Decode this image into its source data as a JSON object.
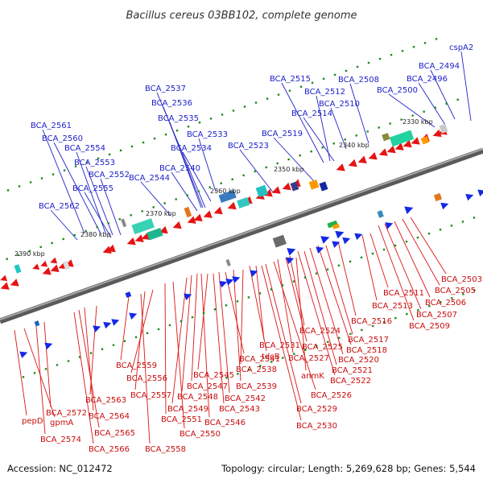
{
  "title": "Bacillus cereus 03BB102, complete genome",
  "footer": {
    "accession": "Accession: NC_012472",
    "topology": "Topology: circular; Length: 5,269,628 bp; Genes: 5,544"
  },
  "scale_labels": [
    "2330 kbp",
    "2340 kbp",
    "2350 kbp",
    "2360 kbp",
    "2370 kbp",
    "2380 kbp",
    "2390 kbp"
  ],
  "forward_genes": [
    "cspA2",
    "BCA_2494",
    "BCA_2496",
    "BCA_2500",
    "BCA_2508",
    "BCA_2515",
    "BCA_2512",
    "BCA_2510",
    "BCA_2514",
    "BCA_2519",
    "BCA_2523",
    "BCA_2533",
    "BCA_2534",
    "BCA_2537",
    "BCA_2536",
    "BCA_2535",
    "BCA_2540",
    "BCA_2544",
    "BCA_2561",
    "BCA_2560",
    "BCA_2554",
    "BCA_2553",
    "BCA_2552",
    "BCA_2555",
    "BCA_2562"
  ],
  "reverse_genes": [
    "BCA_2503",
    "BCA_2505",
    "BCA_2506",
    "BCA_2507",
    "BCA_2509",
    "BCA_2511",
    "BCA_2513",
    "BCA_2516",
    "BCA_2517",
    "BCA_2518",
    "BCA_2520",
    "BCA_2521",
    "BCA_2522",
    "BCA_2524",
    "BCA_2525",
    "BCA_2527",
    "anmK",
    "BCA_2526",
    "BCA_2529",
    "BCA_2530",
    "BCA_2531",
    "tdcB",
    "BCA_2538",
    "BCA_2539",
    "BCA_2541",
    "BCA_2542",
    "BCA_2543",
    "BCA_2545",
    "BCA_2546",
    "BCA_2547",
    "BCA_2548",
    "BCA_2549",
    "BCA_2550",
    "BCA_2551",
    "BCA_2556",
    "BCA_2557",
    "BCA_2558",
    "BCA_2559",
    "BCA_2563",
    "BCA_2564",
    "BCA_2565",
    "BCA_2566",
    "BCA_2572",
    "BCA_2574",
    "gpmA",
    "pepD"
  ]
}
